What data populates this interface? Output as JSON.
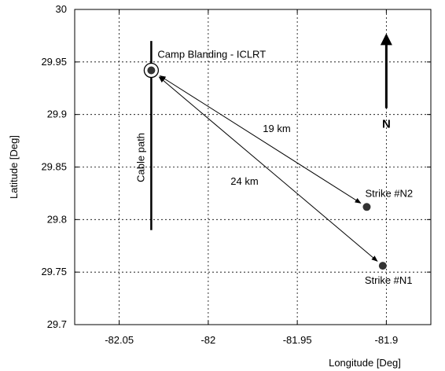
{
  "chart_data": {
    "type": "scatter",
    "xlabel": "Longitude [Deg]",
    "ylabel": "Latitude [Deg]",
    "xlim": [
      -82.075,
      -81.875
    ],
    "ylim": [
      29.7,
      30
    ],
    "xticks": [
      -82.05,
      -82,
      -81.95,
      -81.9
    ],
    "xtick_labels": [
      "-82.05",
      "-82",
      "-81.95",
      "-81.9"
    ],
    "yticks": [
      29.7,
      29.75,
      29.8,
      29.85,
      29.9,
      29.95,
      30
    ],
    "ytick_labels": [
      "29.7",
      "29.75",
      "29.8",
      "29.85",
      "29.9",
      "29.95",
      "30"
    ],
    "grid": true,
    "points": [
      {
        "label": "Camp Blanding - ICLRT",
        "x": -82.032,
        "y": 29.942,
        "circled": true
      },
      {
        "label": "Strike #N2",
        "x": -81.911,
        "y": 29.812
      },
      {
        "label": "Strike #N1",
        "x": -81.902,
        "y": 29.756
      }
    ],
    "distances": [
      {
        "label": "19 km",
        "from": 0,
        "to": 1
      },
      {
        "label": "24 km",
        "from": 0,
        "to": 2
      }
    ],
    "cable": {
      "label": "Cable path",
      "x": -82.032,
      "y_from": 29.79,
      "y_to": 29.97
    },
    "north": {
      "label": "N",
      "x": -81.9,
      "y_from": 29.9,
      "y_to": 29.975
    }
  }
}
